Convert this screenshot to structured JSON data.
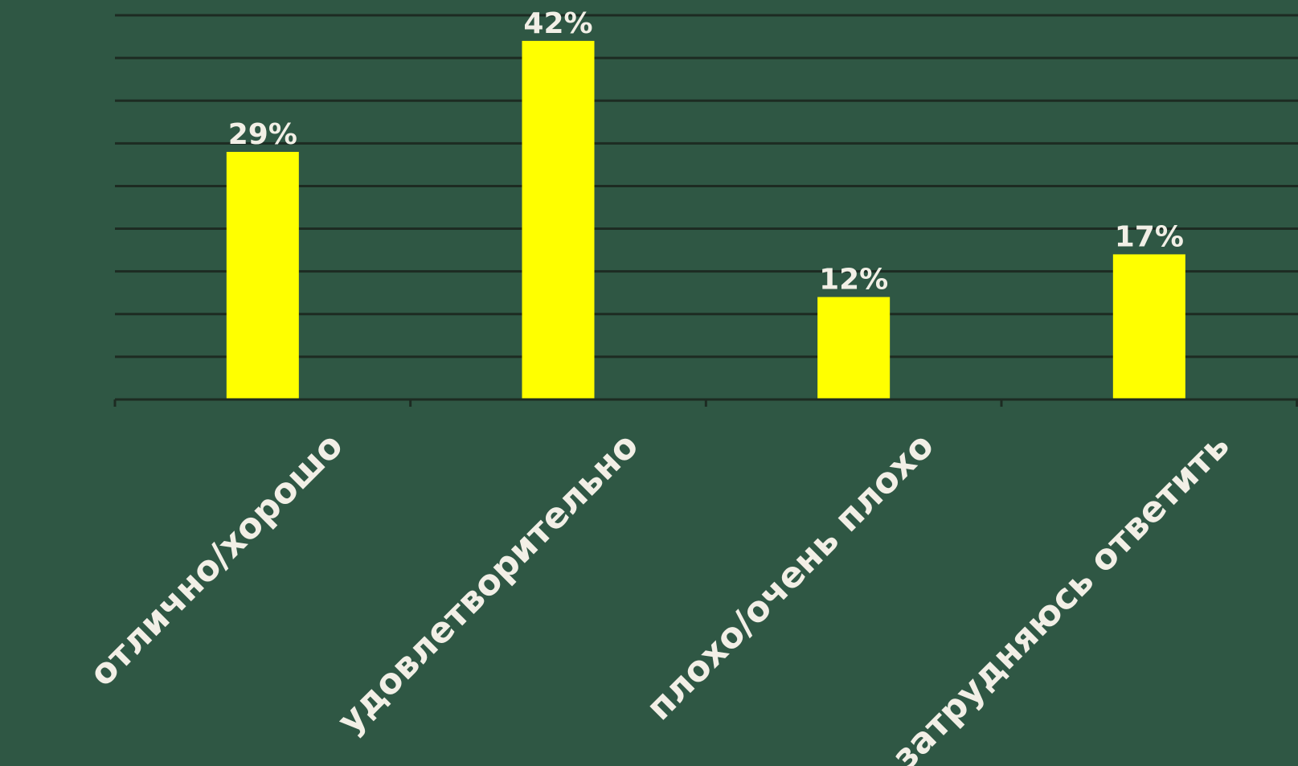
{
  "chart_data": {
    "type": "bar",
    "categories": [
      "отлично/хорошо",
      "удовлетворительно",
      "плохо/очень плохо",
      "затрудняюсь ответить"
    ],
    "values": [
      29,
      42,
      12,
      17
    ],
    "value_labels": [
      "29%",
      "42%",
      "12%",
      "17%"
    ],
    "ylim": [
      0,
      45
    ],
    "grid": true,
    "legend": "none",
    "colors": {
      "bar": "#ffff00",
      "background": "#2f5744",
      "gridlines": "#1d2b22",
      "text": "#f2efe6"
    }
  }
}
